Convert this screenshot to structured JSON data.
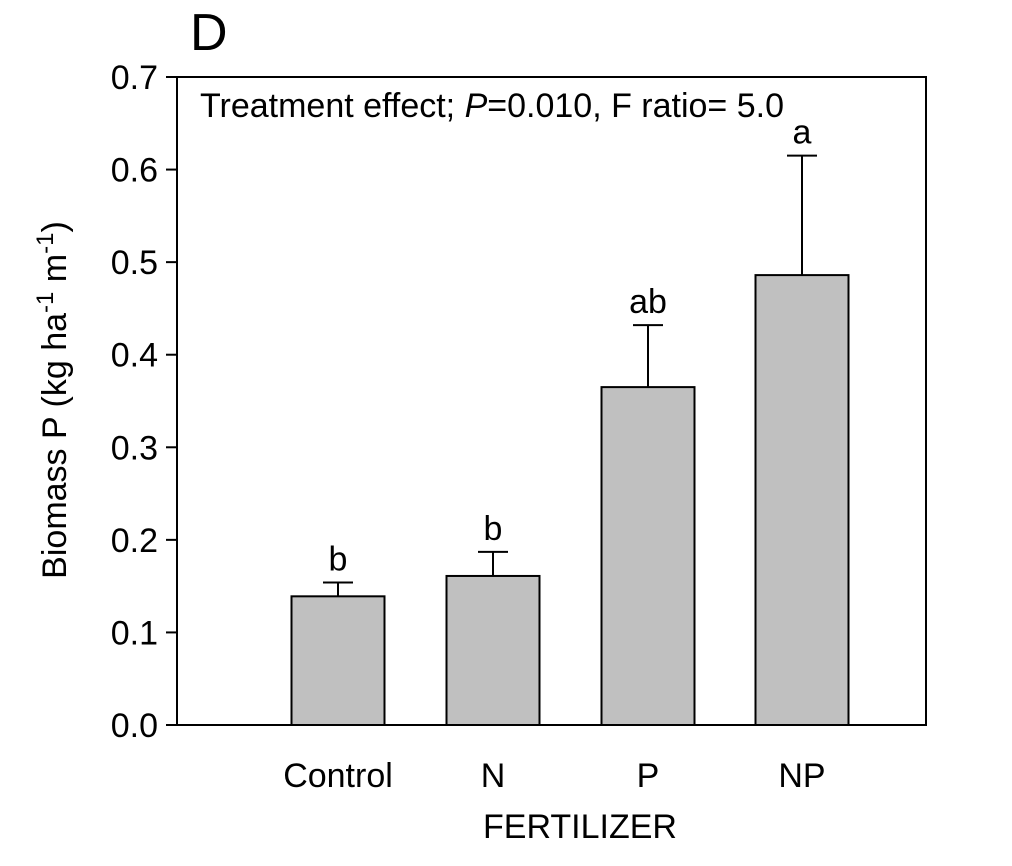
{
  "panel_label": "D",
  "annotation": {
    "prefix": "Treatment effect; ",
    "p_symbol": "P",
    "suffix": "=0.010, F ratio= 5.0"
  },
  "ylabel": {
    "main": "Biomass P (kg ha",
    "sup1": "-1",
    "mid": " m",
    "sup2": "-1",
    "end": ")"
  },
  "chart_data": {
    "type": "bar",
    "categories": [
      "Control",
      "N",
      "P",
      "NP"
    ],
    "values": [
      0.139,
      0.161,
      0.365,
      0.486
    ],
    "error_upper": [
      0.154,
      0.187,
      0.432,
      0.615
    ],
    "significance_labels": [
      "b",
      "b",
      "ab",
      "a"
    ],
    "xlabel": "FERTILIZER",
    "ylim": [
      0.0,
      0.7
    ],
    "yticks": [
      0.0,
      0.1,
      0.2,
      0.3,
      0.4,
      0.5,
      0.6,
      0.7
    ],
    "ytick_labels": [
      "0.0",
      "0.1",
      "0.2",
      "0.3",
      "0.4",
      "0.5",
      "0.6",
      "0.7"
    ],
    "bar_color": "#c0c0c0",
    "grid": false
  }
}
